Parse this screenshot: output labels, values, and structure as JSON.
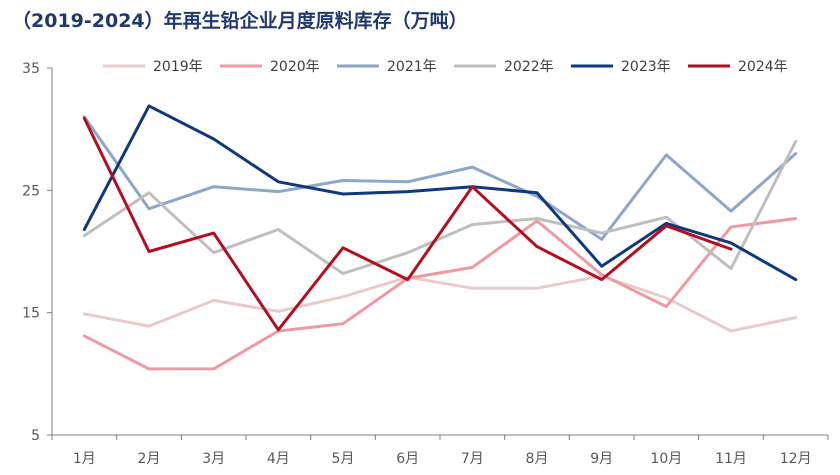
{
  "chart_data": {
    "type": "line",
    "title": "（2019-2024）年再生铅企业月度原料库存（万吨）",
    "xlabel": "",
    "ylabel": "",
    "categories": [
      "1月",
      "2月",
      "3月",
      "4月",
      "5月",
      "6月",
      "7月",
      "8月",
      "9月",
      "10月",
      "11月",
      "12月"
    ],
    "ylim": [
      5,
      35
    ],
    "yticks": [
      5,
      15,
      25,
      35
    ],
    "grid": false,
    "legend_position": "top",
    "series": [
      {
        "name": "2019年",
        "color": "#e8cccc",
        "values": [
          14.9,
          13.9,
          16.0,
          15.1,
          16.3,
          17.9,
          17.0,
          17.0,
          18.0,
          16.2,
          13.5,
          14.6
        ]
      },
      {
        "name": "2020年",
        "color": "#ee9aa5",
        "values": [
          13.1,
          10.4,
          10.4,
          13.5,
          14.1,
          17.8,
          18.7,
          22.5,
          18.1,
          15.5,
          22.0,
          22.7
        ]
      },
      {
        "name": "2021年",
        "color": "#8ea6c8",
        "values": [
          31.0,
          23.5,
          25.3,
          24.9,
          25.8,
          25.7,
          26.9,
          24.5,
          21.0,
          27.9,
          23.3,
          28.0
        ]
      },
      {
        "name": "2022年",
        "color": "#bfbfbf",
        "values": [
          21.3,
          24.8,
          19.9,
          21.8,
          18.2,
          19.9,
          22.2,
          22.7,
          21.5,
          22.8,
          18.6,
          29.0
        ]
      },
      {
        "name": "2023年",
        "color": "#0e3a7c",
        "values": [
          21.8,
          31.9,
          29.2,
          25.7,
          24.7,
          24.9,
          25.3,
          24.8,
          18.8,
          22.3,
          20.7,
          17.7
        ]
      },
      {
        "name": "2024年",
        "color": "#b30f1f",
        "values": [
          30.9,
          20.0,
          21.5,
          13.6,
          20.3,
          17.7,
          25.3,
          20.4,
          17.7,
          22.1,
          20.2,
          null
        ]
      }
    ]
  }
}
